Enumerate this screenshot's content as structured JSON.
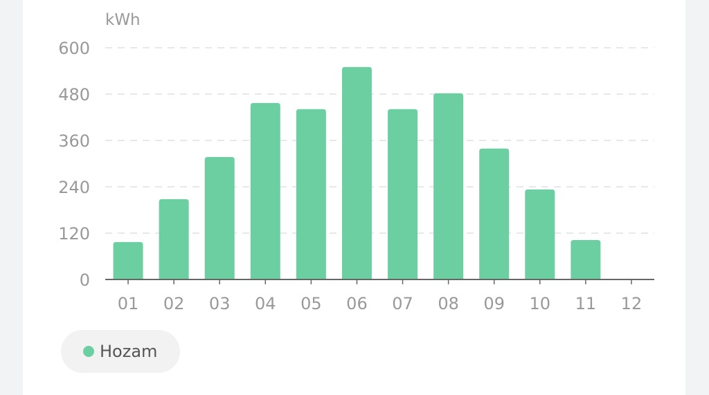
{
  "chart_data": {
    "type": "bar",
    "ylabel": "kWh",
    "categories": [
      "01",
      "02",
      "03",
      "04",
      "05",
      "06",
      "07",
      "08",
      "09",
      "10",
      "11",
      "12"
    ],
    "series": [
      {
        "name": "Hozam",
        "values": [
          97,
          208,
          317,
          457,
          441,
          550,
          441,
          482,
          339,
          233,
          102,
          0
        ],
        "color": "#6ccfa1"
      }
    ],
    "ylim": [
      0,
      600
    ],
    "yticks": [
      0,
      120,
      240,
      360,
      480,
      600
    ],
    "grid": true,
    "legend": "bottom-left"
  }
}
